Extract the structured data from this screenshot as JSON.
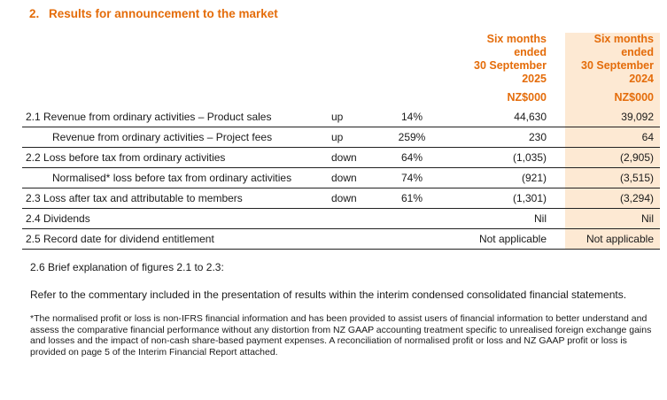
{
  "section": {
    "number": "2.",
    "title": "Results for announcement to the market"
  },
  "columns": [
    {
      "label": "Six months ended 30 September 2025",
      "lines": [
        "Six months",
        "ended",
        "30 September",
        "2025"
      ],
      "unit": "NZ$000"
    },
    {
      "label": "Six months ended 30 September 2024",
      "lines": [
        "Six months",
        "ended",
        "30 September",
        "2024"
      ],
      "unit": "NZ$000"
    }
  ],
  "rows": [
    {
      "label": "2.1 Revenue from ordinary activities – Product sales",
      "direction": "up",
      "change": "14%",
      "current": "44,630",
      "prior": "39,092"
    },
    {
      "label": "Revenue from ordinary activities – Project fees",
      "direction": "up",
      "change": "259%",
      "current": "230",
      "prior": "64"
    },
    {
      "label": "2.2 Loss before tax from ordinary activities",
      "direction": "down",
      "change": "64%",
      "current": "(1,035)",
      "prior": "(2,905)"
    },
    {
      "label": "Normalised* loss before tax from ordinary activities",
      "direction": "down",
      "change": "74%",
      "current": "(921)",
      "prior": "(3,515)"
    },
    {
      "label": "2.3 Loss after tax and attributable to members",
      "direction": "down",
      "change": "61%",
      "current": "(1,301)",
      "prior": "(3,294)"
    },
    {
      "label": "2.4 Dividends",
      "direction": "",
      "change": "",
      "current": "Nil",
      "prior": "Nil"
    },
    {
      "label": "2.5 Record date for dividend entitlement",
      "direction": "",
      "change": "",
      "current": "Not applicable",
      "prior": "Not applicable"
    }
  ],
  "brief_heading": "2.6 Brief explanation of figures 2.1 to 2.3:",
  "commentary": "Refer to the commentary included in the presentation of results within the interim condensed consolidated financial statements.",
  "footnote": "*The normalised profit or loss is non-IFRS financial information and has been provided to assist users of financial information to better understand and assess the comparative financial performance without any distortion from NZ GAAP accounting treatment specific to unrealised foreign exchange gains and losses and the impact of non-cash share-based payment expenses. A reconciliation of normalised profit or loss and NZ GAAP profit or loss is provided on page 5 of the Interim Financial Report attached.",
  "colors": {
    "accent": "#e46c0a",
    "shade": "#fde9d3"
  }
}
